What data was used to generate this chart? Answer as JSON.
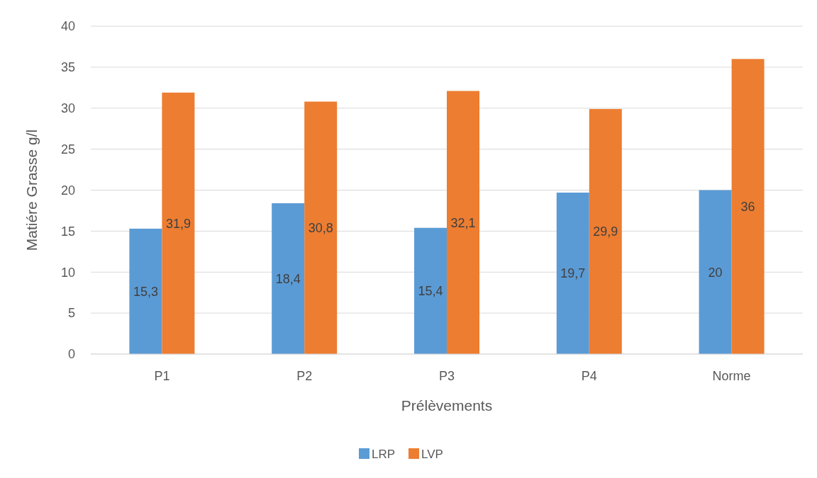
{
  "chart_data": {
    "type": "bar",
    "xlabel": "Prélèvements",
    "ylabel": "Matiére Grasse g/l",
    "categories": [
      "P1",
      "P2",
      "P3",
      "P4",
      "Norme"
    ],
    "series": [
      {
        "name": "LRP",
        "color": "#5b9bd5",
        "values": [
          15.3,
          18.4,
          15.4,
          19.7,
          20
        ],
        "value_labels": [
          "15,3",
          "18,4",
          "15,4",
          "19,7",
          "20"
        ]
      },
      {
        "name": "LVP",
        "color": "#ed7d31",
        "values": [
          31.9,
          30.8,
          32.1,
          29.9,
          36
        ],
        "value_labels": [
          "31,9",
          "30,8",
          "32,1",
          "29,9",
          "36"
        ]
      }
    ],
    "ylim": [
      0,
      40
    ],
    "yticks": [
      0,
      5,
      10,
      15,
      20,
      25,
      30,
      35,
      40
    ],
    "grid": "y",
    "legend": "bottom"
  }
}
